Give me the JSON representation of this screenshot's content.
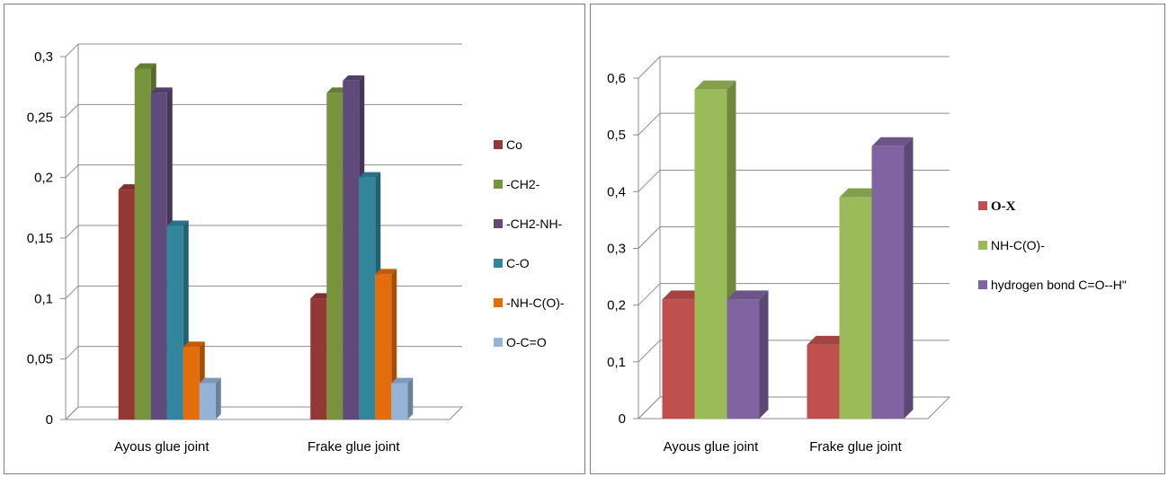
{
  "chart_data": [
    {
      "type": "bar",
      "categories": [
        "Ayous glue joint",
        "Frake glue joint"
      ],
      "ylim": [
        0,
        0.3
      ],
      "yticks": [
        "0",
        "0,05",
        "0,1",
        "0,15",
        "0,2",
        "0,25",
        "0,3"
      ],
      "grid": true,
      "legend_position": "right",
      "series": [
        {
          "name": "Co",
          "values": [
            0.19,
            0.1
          ],
          "color": "#953735"
        },
        {
          "name": "-CH2-",
          "values": [
            0.29,
            0.27
          ],
          "color": "#77933c"
        },
        {
          "name": "-CH2-NH-",
          "values": [
            0.27,
            0.28
          ],
          "color": "#604a7b"
        },
        {
          "name": "C-O",
          "values": [
            0.16,
            0.2
          ],
          "color": "#31859c"
        },
        {
          "name": "-NH-C(O)-",
          "values": [
            0.06,
            0.12
          ],
          "color": "#e46c0a"
        },
        {
          "name": "O-C=O",
          "values": [
            0.03,
            0.03
          ],
          "color": "#95b3d7"
        }
      ]
    },
    {
      "type": "bar",
      "categories": [
        "Ayous glue joint",
        "Frake glue joint"
      ],
      "ylim": [
        0,
        0.6
      ],
      "yticks": [
        "0",
        "0,1",
        "0,2",
        "0,3",
        "0,4",
        "0,5",
        "0,6"
      ],
      "grid": true,
      "legend_position": "right",
      "series": [
        {
          "name": "O-X",
          "values": [
            0.21,
            0.13
          ],
          "color": "#c0504d"
        },
        {
          "name": "NH-C(O)-",
          "values": [
            0.58,
            0.39
          ],
          "color": "#9bbb59"
        },
        {
          "name": "hydrogen bond C=O--H\"",
          "values": [
            0.21,
            0.48
          ],
          "color": "#8064a2"
        }
      ]
    }
  ]
}
